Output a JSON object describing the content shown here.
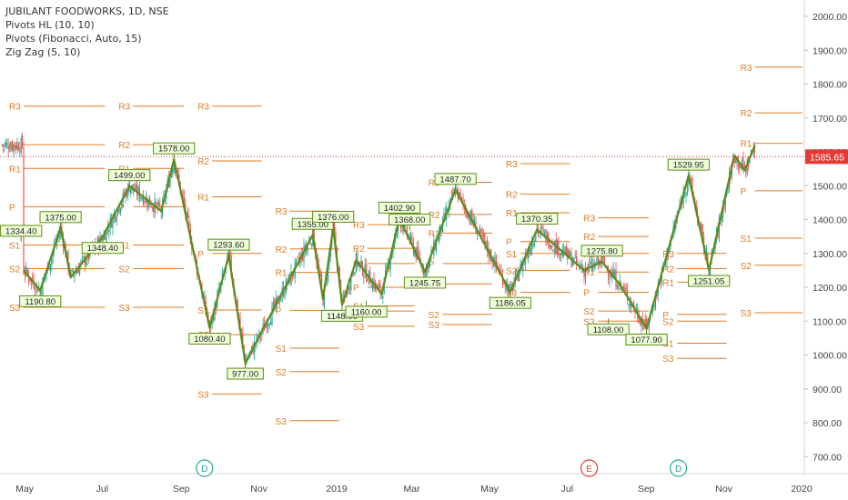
{
  "legend": {
    "title": "JUBILANT FOODWORKS, 1D, NSE",
    "line1": "Pivots HL (10, 10)",
    "line2": "Pivots (Fibonacci, Auto, 15)",
    "line3": "Zig Zag (5, 10)"
  },
  "colors": {
    "up": "#26a69a",
    "down": "#ef5350",
    "zigzag": "#5b8c1a",
    "pivot": "#e07b22",
    "price_line": "#e53935",
    "event_d": "#26a69a",
    "event_e": "#e53935"
  },
  "chart_data": {
    "type": "candlestick",
    "symbol": "JUBILANT FOODWORKS",
    "interval": "1D",
    "exchange": "NSE",
    "ylim": [
      660,
      2040
    ],
    "yticks": [
      "2000.00",
      "1900.00",
      "1800.00",
      "1700.00",
      "1600.00",
      "1500.00",
      "1400.00",
      "1300.00",
      "1200.00",
      "1100.00",
      "1000.00",
      "900.00",
      "800.00",
      "700.00"
    ],
    "ytick_values": [
      2000,
      1900,
      1800,
      1700,
      1600,
      1500,
      1400,
      1300,
      1200,
      1100,
      1000,
      900,
      800,
      700
    ],
    "xticks": [
      "May",
      "Jul",
      "Sep",
      "Nov",
      "2019",
      "Mar",
      "May",
      "Jul",
      "Sep",
      "Nov",
      "2020"
    ],
    "xtick_days": [
      0,
      61,
      123,
      184,
      245,
      304,
      365,
      426,
      488,
      549,
      610
    ],
    "last_price": "1585.65",
    "last_price_value": 1585.65,
    "zigzag": [
      {
        "day": -5,
        "price": 1250
      },
      {
        "day": 8,
        "price": 1190.8
      },
      {
        "day": 24,
        "price": 1375
      },
      {
        "day": 32,
        "price": 1230
      },
      {
        "day": 57,
        "price": 1348.4
      },
      {
        "day": 78,
        "price": 1499
      },
      {
        "day": 103,
        "price": 1425
      },
      {
        "day": 113,
        "price": 1578
      },
      {
        "day": 141,
        "price": 1080.4
      },
      {
        "day": 156,
        "price": 1293.6
      },
      {
        "day": 169,
        "price": 977
      },
      {
        "day": 222,
        "price": 1355
      },
      {
        "day": 230,
        "price": 1165
      },
      {
        "day": 238,
        "price": 1376
      },
      {
        "day": 245,
        "price": 1148
      },
      {
        "day": 256,
        "price": 1280
      },
      {
        "day": 276,
        "price": 1180
      },
      {
        "day": 290,
        "price": 1402.9
      },
      {
        "day": 310,
        "price": 1245.75
      },
      {
        "day": 334,
        "price": 1487.7
      },
      {
        "day": 377,
        "price": 1186.05
      },
      {
        "day": 398,
        "price": 1370.35
      },
      {
        "day": 435,
        "price": 1250
      },
      {
        "day": 449,
        "price": 1275.8
      },
      {
        "day": 464,
        "price": 1203
      },
      {
        "day": 484,
        "price": 1077.9
      },
      {
        "day": 517,
        "price": 1529.95
      },
      {
        "day": 533,
        "price": 1251.05
      },
      {
        "day": 553,
        "price": 1590
      },
      {
        "day": 561,
        "price": 1545
      },
      {
        "day": 569,
        "price": 1620
      }
    ],
    "pivots_hl": [
      {
        "label": "1334.40",
        "day": -7,
        "price": 1334.4,
        "pos": "above"
      },
      {
        "label": "1190.80",
        "day": 8,
        "price": 1190.8,
        "pos": "below"
      },
      {
        "label": "1375.00",
        "day": 24,
        "price": 1375,
        "pos": "above"
      },
      {
        "label": "1348.40",
        "day": 57,
        "price": 1348.4,
        "pos": "below"
      },
      {
        "label": "1499.00",
        "day": 78,
        "price": 1499,
        "pos": "above"
      },
      {
        "label": "1578.00",
        "day": 113,
        "price": 1578,
        "pos": "above"
      },
      {
        "label": "1080.40",
        "day": 141,
        "price": 1080.4,
        "pos": "below"
      },
      {
        "label": "1293.60",
        "day": 156,
        "price": 1293.6,
        "pos": "above"
      },
      {
        "label": "977.00",
        "day": 169,
        "price": 977,
        "pos": "below"
      },
      {
        "label": "1355.00",
        "day": 222,
        "price": 1355,
        "pos": "above"
      },
      {
        "label": "1376.00",
        "day": 238,
        "price": 1376,
        "pos": "above"
      },
      {
        "label": "1148.00",
        "day": 245,
        "price": 1148,
        "pos": "below"
      },
      {
        "label": "1160.00",
        "day": 264,
        "price": 1160,
        "pos": "below"
      },
      {
        "label": "1402.90",
        "day": 290,
        "price": 1402.9,
        "pos": "above"
      },
      {
        "label": "1368.00",
        "day": 298,
        "price": 1368,
        "pos": "above"
      },
      {
        "label": "1245.75",
        "day": 310,
        "price": 1245.75,
        "pos": "below"
      },
      {
        "label": "1487.70",
        "day": 334,
        "price": 1487.7,
        "pos": "above"
      },
      {
        "label": "1186.05",
        "day": 377,
        "price": 1186.05,
        "pos": "below"
      },
      {
        "label": "1370.35",
        "day": 398,
        "price": 1370.35,
        "pos": "above"
      },
      {
        "label": "1275.80",
        "day": 449,
        "price": 1275.8,
        "pos": "above"
      },
      {
        "label": "1108.00",
        "day": 454,
        "price": 1108,
        "pos": "below"
      },
      {
        "label": "1077.90",
        "day": 484,
        "price": 1077.9,
        "pos": "below"
      },
      {
        "label": "1529.95",
        "day": 517,
        "price": 1529.95,
        "pos": "above"
      },
      {
        "label": "1251.05",
        "day": 533,
        "price": 1251.05,
        "pos": "below"
      }
    ],
    "pivot_levels": [
      {
        "start": -25,
        "end": 61,
        "R3": 1735,
        "R2": 1621,
        "R1": 1551,
        "P": 1438,
        "S1": 1325,
        "S2": 1255,
        "S3": 1141
      },
      {
        "start": 61,
        "end": 123,
        "R3": 1735,
        "R2": 1621,
        "R1": 1551,
        "P": 1438,
        "S1": 1325,
        "S2": 1255,
        "S3": 1141
      },
      {
        "start": 123,
        "end": 184,
        "R3": 1735,
        "R2": 1573,
        "R1": 1467,
        "P": 1300,
        "S1": 1133,
        "S2": 1060,
        "S3": 885
      },
      {
        "start": 184,
        "end": 245,
        "R3": 1425,
        "R2": 1313,
        "R1": 1244,
        "P": 1132,
        "S1": 1020,
        "S2": 951,
        "S3": 806
      },
      {
        "start": 245,
        "end": 304,
        "R3": 1385,
        "R2": 1315,
        "R1": 1270,
        "P": 1200,
        "S1": 1145,
        "S2": 1130,
        "S3": 1085
      },
      {
        "start": 304,
        "end": 365,
        "R3": 1510,
        "R2": 1415,
        "R1": 1360,
        "P": 1270,
        "S1": 1210,
        "S2": 1120,
        "S3": 1090
      },
      {
        "start": 365,
        "end": 426,
        "R3": 1565,
        "R2": 1475,
        "R1": 1420,
        "P": 1335,
        "S1": 1300,
        "S2": 1250,
        "S3": 1185
      },
      {
        "start": 426,
        "end": 488,
        "R3": 1405,
        "R2": 1350,
        "R1": 1300,
        "P": 1185,
        "S1": 1245,
        "S2": 1130,
        "S3": 1100
      },
      {
        "start": 488,
        "end": 549,
        "R3": 1300,
        "R2": 1255,
        "R1": 1215,
        "P": 1120,
        "S1": 1035,
        "S2": 1100,
        "S3": 990
      },
      {
        "start": 549,
        "end": 610,
        "R3": 1850,
        "R2": 1715,
        "R1": 1625,
        "P": 1485,
        "S1": 1345,
        "S2": 1265,
        "S3": 1125
      }
    ],
    "events": [
      {
        "label": "D",
        "day": 137,
        "color": "#26a69a"
      },
      {
        "label": "E",
        "day": 439,
        "color": "#e53935"
      },
      {
        "label": "D",
        "day": 509,
        "color": "#26a69a"
      }
    ]
  }
}
